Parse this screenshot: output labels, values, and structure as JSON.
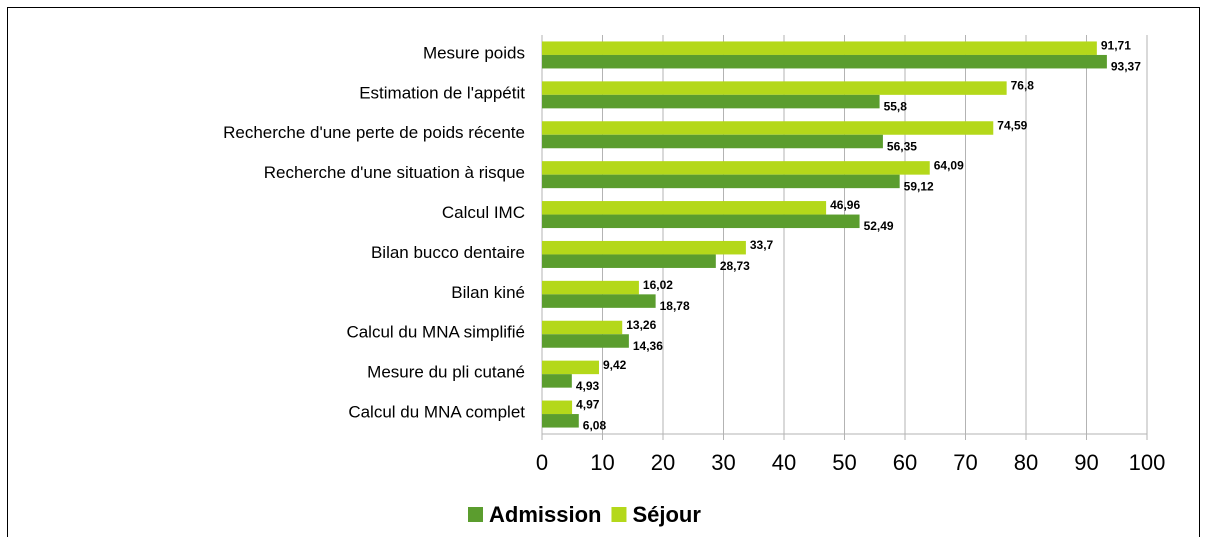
{
  "chart_data": {
    "type": "hbar",
    "categories": [
      "Mesure poids",
      "Estimation de l'appétit",
      "Recherche d'une perte de poids récente",
      "Recherche d'une situation à risque",
      "Calcul IMC",
      "Bilan bucco dentaire",
      "Bilan kiné",
      "Calcul du MNA simplifié",
      "Mesure du pli cutané",
      "Calcul du MNA complet"
    ],
    "series": [
      {
        "name": "Admission",
        "color": "#5b9d2e",
        "values": [
          93.37,
          55.8,
          56.35,
          59.12,
          52.49,
          28.73,
          18.78,
          14.36,
          4.93,
          6.08
        ],
        "value_labels": [
          "93,37",
          "55,8",
          "56,35",
          "59,12",
          "52,49",
          "28,73",
          "18,78",
          "14,36",
          "4,93",
          "6,08"
        ]
      },
      {
        "name": "Séjour",
        "color": "#b4d81a",
        "values": [
          91.71,
          76.8,
          74.59,
          64.09,
          46.96,
          33.7,
          16.02,
          13.26,
          9.42,
          4.97
        ],
        "value_labels": [
          "91,71",
          "76,8",
          "74,59",
          "64,09",
          "46,96",
          "33,7",
          "16,02",
          "13,26",
          "9,42",
          "4,97"
        ]
      }
    ],
    "xlim": [
      0,
      100
    ],
    "xticks": [
      0,
      10,
      20,
      30,
      40,
      50,
      60,
      70,
      80,
      90,
      100
    ],
    "grid": true,
    "legend": "bottom"
  }
}
